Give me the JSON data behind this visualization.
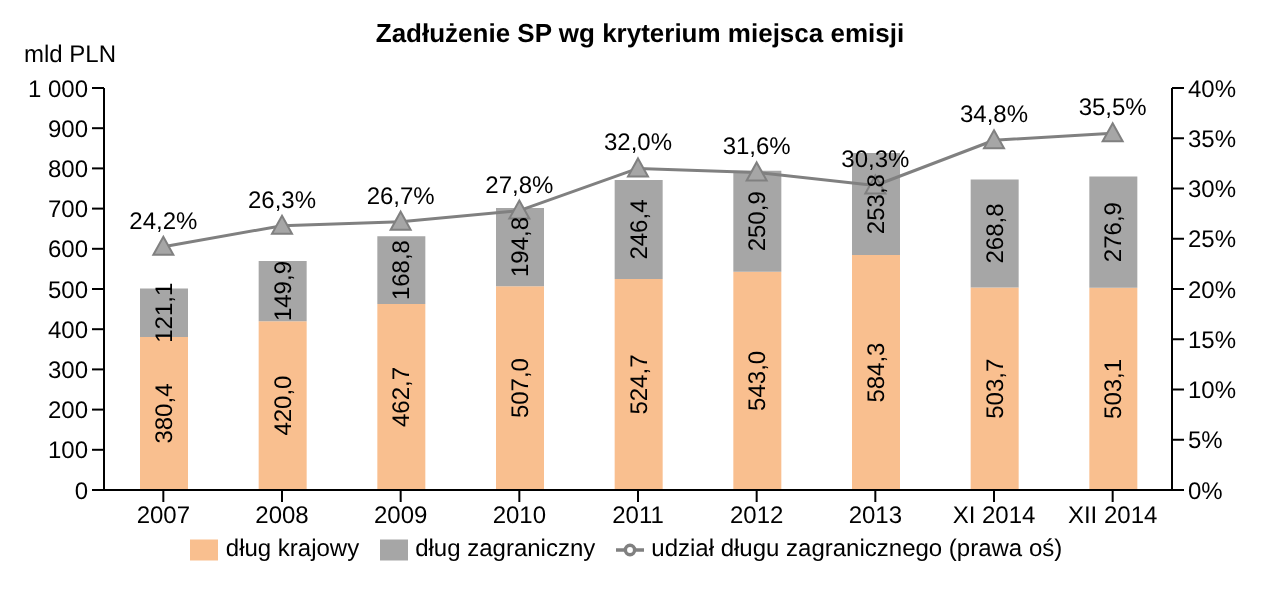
{
  "chart_data": {
    "type": "bar",
    "title": "Zadłużenie SP wg kryterium miejsca emisji",
    "ylabel": "mld PLN",
    "stacked": true,
    "categories": [
      "2007",
      "2008",
      "2009",
      "2010",
      "2011",
      "2012",
      "2013",
      "XI 2014",
      "XII 2014"
    ],
    "series": [
      {
        "name": "dług krajowy",
        "color": "#f9bf8f",
        "values": [
          380.4,
          420.0,
          462.7,
          507.0,
          524.7,
          543.0,
          584.3,
          503.7,
          503.1
        ],
        "value_labels": [
          "380,4",
          "420,0",
          "462,7",
          "507,0",
          "524,7",
          "543,0",
          "584,3",
          "503,7",
          "503,1"
        ]
      },
      {
        "name": "dług zagraniczny",
        "color": "#a6a6a6",
        "values": [
          121.1,
          149.9,
          168.8,
          194.8,
          246.4,
          250.9,
          253.8,
          268.8,
          276.9
        ],
        "value_labels": [
          "121,1",
          "149,9",
          "168,8",
          "194,8",
          "246,4",
          "250,9",
          "253,8",
          "268,8",
          "276,9"
        ]
      },
      {
        "name": "udział długu zagranicznego (prawa oś)",
        "type": "line",
        "axis": "y2",
        "color": "#808080",
        "values": [
          24.2,
          26.3,
          26.7,
          27.8,
          32.0,
          31.6,
          30.3,
          34.8,
          35.5
        ],
        "value_labels": [
          "24,2%",
          "26,3%",
          "26,7%",
          "27,8%",
          "32,0%",
          "31,6%",
          "30,3%",
          "34,8%",
          "35,5%"
        ]
      }
    ],
    "ylim": [
      0,
      1000
    ],
    "yticks": [
      0,
      100,
      200,
      300,
      400,
      500,
      600,
      700,
      800,
      900,
      {
        "value": 1000,
        "label": "1 000"
      }
    ],
    "y2lim": [
      0,
      40
    ],
    "y2ticks": [
      {
        "value": 0,
        "label": "0%"
      },
      {
        "value": 5,
        "label": "5%"
      },
      {
        "value": 10,
        "label": "10%"
      },
      {
        "value": 15,
        "label": "15%"
      },
      {
        "value": 20,
        "label": "20%"
      },
      {
        "value": 25,
        "label": "25%"
      },
      {
        "value": 30,
        "label": "30%"
      },
      {
        "value": 35,
        "label": "35%"
      },
      {
        "value": 40,
        "label": "40%"
      }
    ],
    "grid": false,
    "legend": "bottom",
    "marker": "triangle",
    "line_style": "solid"
  }
}
